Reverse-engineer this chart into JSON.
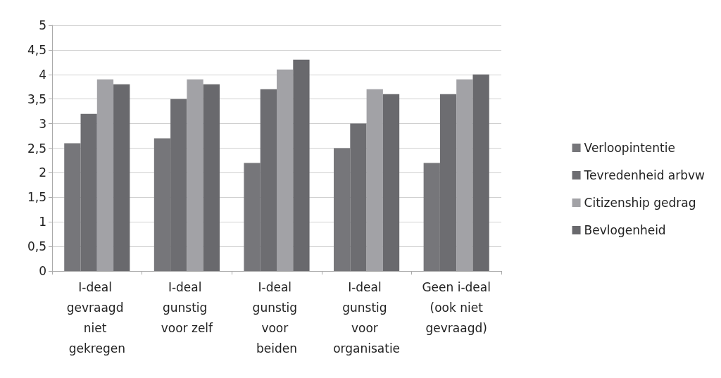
{
  "chart_data": {
    "type": "bar",
    "categories": [
      "I-deal gevraagd niet gekregen",
      "I-deal gunstig voor zelf",
      "I-deal gunstig voor beiden",
      "I-deal gunstig voor organisatie",
      "Geen i-deal (ook niet gevraagd)"
    ],
    "series": [
      {
        "name": "Verloopintentie",
        "color": "#76767a",
        "values": [
          2.6,
          2.7,
          2.2,
          2.5,
          2.2
        ]
      },
      {
        "name": "Tevredenheid arbvw",
        "color": "#6d6d71",
        "values": [
          3.2,
          3.5,
          3.7,
          3.0,
          3.6
        ]
      },
      {
        "name": "Citizenship gedrag",
        "color": "#a2a2a6",
        "values": [
          3.9,
          3.9,
          4.1,
          3.7,
          3.9
        ]
      },
      {
        "name": "Bevlogenheid",
        "color": "#69696d",
        "values": [
          3.8,
          3.8,
          4.3,
          3.6,
          4.0
        ]
      }
    ],
    "ylim": [
      0,
      5
    ],
    "yticks": [
      0,
      {
        "value": 0.5,
        "label": "0,5"
      },
      1,
      {
        "value": 1.5,
        "label": "1,5"
      },
      2,
      {
        "value": 2.5,
        "label": "2,5"
      },
      3,
      {
        "value": 3.5,
        "label": "3,5"
      },
      4,
      {
        "value": 4.5,
        "label": "4,5"
      },
      5
    ],
    "grid": "y",
    "legend": "right"
  }
}
